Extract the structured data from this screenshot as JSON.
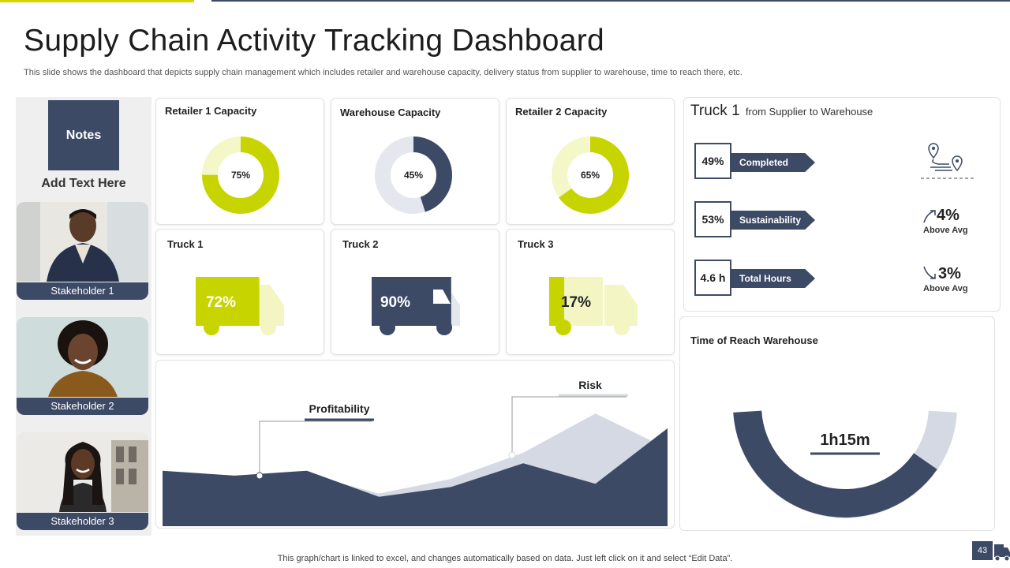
{
  "header": {
    "title": "Supply Chain Activity Tracking Dashboard",
    "subtitle": "This slide shows the dashboard that depicts supply chain management which includes retailer and warehouse capacity, delivery status from supplier to warehouse, time to reach there, etc."
  },
  "sidebar": {
    "notes_label": "Notes",
    "add_text": "Add Text Here",
    "stakeholders": [
      "Stakeholder 1",
      "Stakeholder 2",
      "Stakeholder 3"
    ]
  },
  "capacity": [
    {
      "title": "Retailer 1 Capacity",
      "percent_label": "75%",
      "value": 75,
      "color": "#c8d400",
      "track": "#f4f7c8"
    },
    {
      "title": "Warehouse Capacity",
      "percent_label": "45%",
      "value": 45,
      "color": "#3d4a66",
      "track": "#e4e7ee"
    },
    {
      "title": "Retailer 2 Capacity",
      "percent_label": "65%",
      "value": 65,
      "color": "#c8d400",
      "track": "#f4f7c8"
    }
  ],
  "trucks": [
    {
      "title": "Truck 1",
      "percent_label": "72%",
      "value": 72,
      "color": "#c8d400",
      "light": "#f3f6c2"
    },
    {
      "title": "Truck 2",
      "percent_label": "90%",
      "value": 90,
      "color": "#3d4a66",
      "light": "#e4e7ee"
    },
    {
      "title": "Truck 3",
      "percent_label": "17%",
      "value": 17,
      "color": "#c8d400",
      "light": "#f3f6c2"
    }
  ],
  "area_chart": {
    "profitability_label": "Profitability",
    "risk_label": "Risk"
  },
  "chart_data": {
    "type": "area",
    "title": "",
    "series": [
      {
        "name": "Profitability",
        "values": [
          68,
          62,
          68,
          36,
          48,
          77,
          52,
          120
        ],
        "color": "#3d4a66"
      },
      {
        "name": "Risk",
        "values": [
          60,
          58,
          64,
          40,
          58,
          90,
          138,
          95
        ],
        "color": "#d5d9e3"
      }
    ],
    "ylim": [
      0,
      145
    ]
  },
  "truck1_panel": {
    "title": "Truck 1",
    "subtitle": "from Supplier to Warehouse",
    "stats": [
      {
        "value": "49%",
        "label": "Completed"
      },
      {
        "value": "53%",
        "label": "Sustainability"
      },
      {
        "value": "4.6 h",
        "label": "Total Hours"
      }
    ],
    "above_avg": [
      {
        "value": "4%",
        "label": "Above Avg",
        "icon": "trend-up-icon"
      },
      {
        "value": "3%",
        "label": "Above Avg",
        "icon": "trend-down-icon"
      }
    ]
  },
  "time_reach": {
    "title": "Time of Reach Warehouse",
    "value": "1h15m",
    "fraction": 0.82,
    "color": "#3d4a66",
    "track": "#d5d9e3"
  },
  "footer": {
    "note": "This graph/chart is linked to excel, and changes automatically based on data. Just left click on it and select “Edit Data”.",
    "page": "43"
  }
}
